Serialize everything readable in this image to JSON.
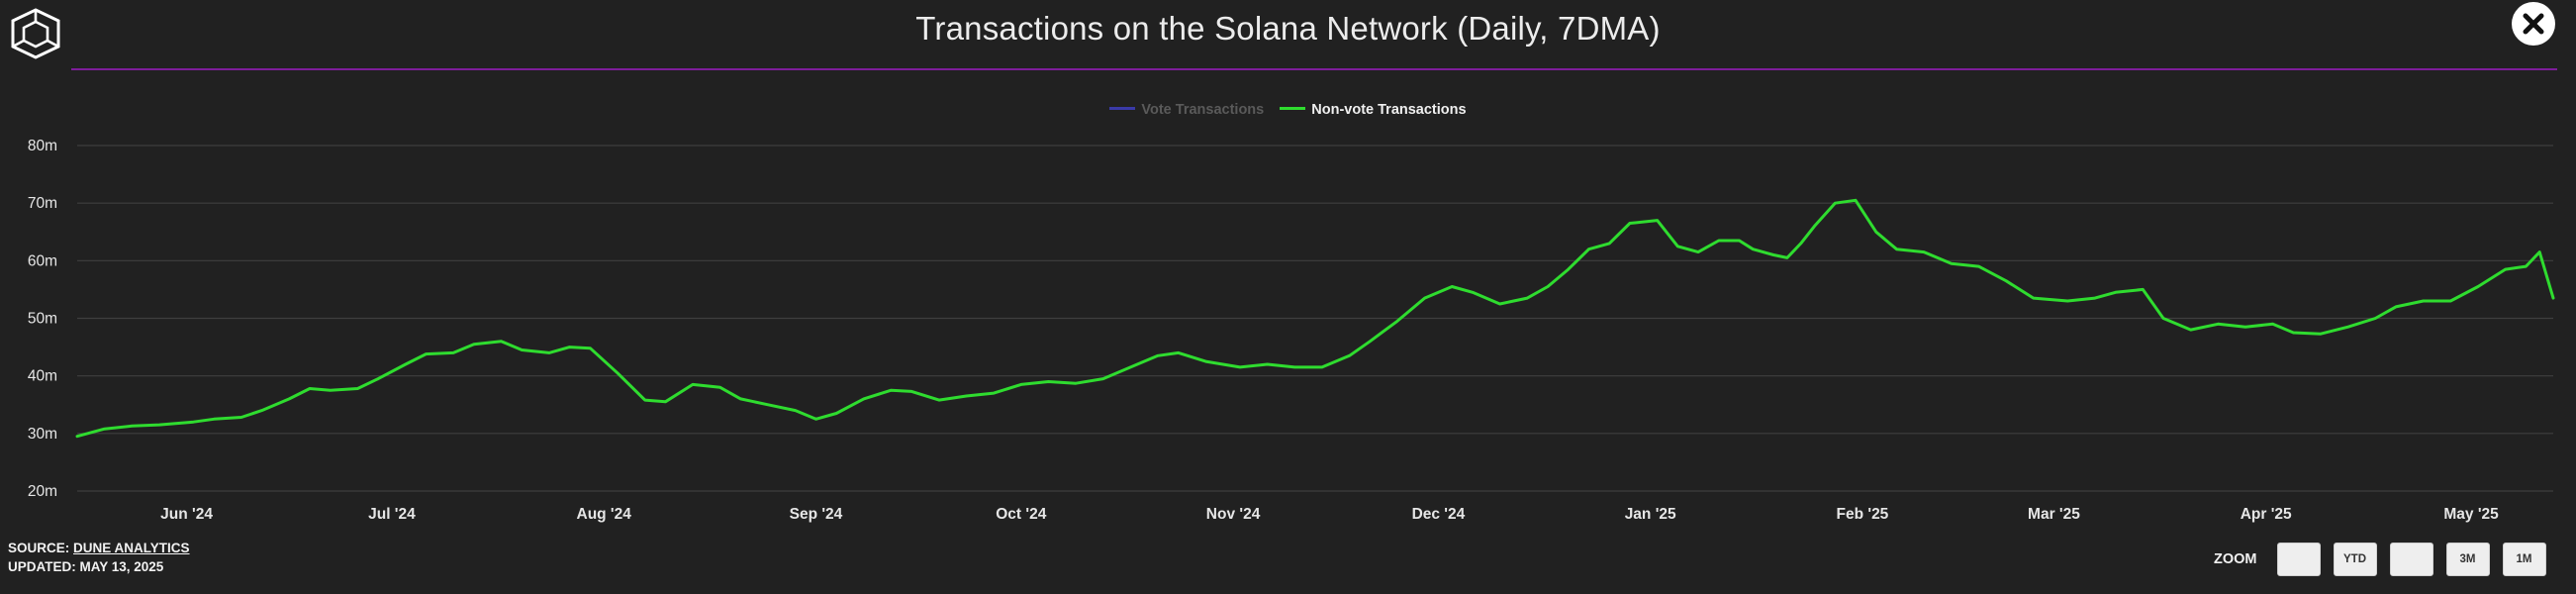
{
  "header": {
    "title": "Transactions on the Solana Network (Daily, 7DMA)"
  },
  "colors": {
    "background": "#212121",
    "divider": "#7d1d9a",
    "series_active": "#2fdc2f",
    "series_inactive": "#3a3aa8",
    "grid": "#3f3f3f"
  },
  "icons": {
    "logo": "cube-logo-icon",
    "close": "close-icon"
  },
  "legend": {
    "items": [
      {
        "label": "Vote Transactions",
        "state": "hidden"
      },
      {
        "label": "Non-vote Transactions",
        "state": "visible"
      }
    ]
  },
  "footer": {
    "source_prefix": "SOURCE: ",
    "source_link": "DUNE ANALYTICS",
    "updated": "UPDATED: MAY 13, 2025"
  },
  "zoom": {
    "label": "ZOOM",
    "buttons": [
      "",
      "YTD",
      "",
      "3M",
      "1M"
    ]
  },
  "chart_data": {
    "type": "line",
    "title": "Transactions on the Solana Network (Daily, 7DMA)",
    "xlabel": "",
    "ylabel": "",
    "grid": true,
    "legend_position": "top-center",
    "y_unit": "m",
    "ylim": [
      20,
      80
    ],
    "y_ticks": [
      20,
      30,
      40,
      50,
      60,
      70,
      80
    ],
    "y_tick_labels": [
      "20m",
      "30m",
      "40m",
      "50m",
      "60m",
      "70m",
      "80m"
    ],
    "xlim": [
      "2024-05-16",
      "2025-05-13"
    ],
    "x_ticks": [
      "2024-06-01",
      "2024-07-01",
      "2024-08-01",
      "2024-09-01",
      "2024-10-01",
      "2024-11-01",
      "2024-12-01",
      "2025-01-01",
      "2025-02-01",
      "2025-03-01",
      "2025-04-01",
      "2025-05-01"
    ],
    "x_tick_labels": [
      "Jun '24",
      "Jul '24",
      "Aug '24",
      "Sep '24",
      "Oct '24",
      "Nov '24",
      "Dec '24",
      "Jan '25",
      "Feb '25",
      "Mar '25",
      "Apr '25",
      "May '25"
    ],
    "series": [
      {
        "name": "Vote Transactions",
        "visible": false,
        "values": []
      },
      {
        "name": "Non-vote Transactions",
        "visible": true,
        "x": [
          "2024-05-16",
          "2024-05-20",
          "2024-05-24",
          "2024-05-28",
          "2024-06-02",
          "2024-06-05",
          "2024-06-09",
          "2024-06-12",
          "2024-06-16",
          "2024-06-19",
          "2024-06-22",
          "2024-06-26",
          "2024-06-29",
          "2024-07-03",
          "2024-07-06",
          "2024-07-10",
          "2024-07-13",
          "2024-07-17",
          "2024-07-20",
          "2024-07-24",
          "2024-07-27",
          "2024-07-30",
          "2024-08-03",
          "2024-08-07",
          "2024-08-10",
          "2024-08-14",
          "2024-08-18",
          "2024-08-21",
          "2024-08-25",
          "2024-08-29",
          "2024-09-01",
          "2024-09-04",
          "2024-09-08",
          "2024-09-12",
          "2024-09-15",
          "2024-09-19",
          "2024-09-23",
          "2024-09-27",
          "2024-10-01",
          "2024-10-05",
          "2024-10-09",
          "2024-10-13",
          "2024-10-17",
          "2024-10-21",
          "2024-10-24",
          "2024-10-28",
          "2024-11-02",
          "2024-11-06",
          "2024-11-10",
          "2024-11-14",
          "2024-11-18",
          "2024-11-21",
          "2024-11-25",
          "2024-11-29",
          "2024-12-03",
          "2024-12-06",
          "2024-12-10",
          "2024-12-14",
          "2024-12-17",
          "2024-12-20",
          "2024-12-23",
          "2024-12-26",
          "2024-12-29",
          "2025-01-02",
          "2025-01-05",
          "2025-01-08",
          "2025-01-11",
          "2025-01-14",
          "2025-01-16",
          "2025-01-19",
          "2025-01-21",
          "2025-01-23",
          "2025-01-25",
          "2025-01-28",
          "2025-01-31",
          "2025-02-03",
          "2025-02-06",
          "2025-02-10",
          "2025-02-14",
          "2025-02-18",
          "2025-02-22",
          "2025-02-26",
          "2025-03-03",
          "2025-03-07",
          "2025-03-10",
          "2025-03-14",
          "2025-03-17",
          "2025-03-21",
          "2025-03-25",
          "2025-03-29",
          "2025-04-02",
          "2025-04-05",
          "2025-04-09",
          "2025-04-13",
          "2025-04-17",
          "2025-04-20",
          "2025-04-24",
          "2025-04-28",
          "2025-05-02",
          "2025-05-06",
          "2025-05-09",
          "2025-05-11",
          "2025-05-13"
        ],
        "values": [
          29.5,
          30.8,
          31.3,
          31.5,
          32.0,
          32.5,
          32.8,
          34.0,
          36.0,
          37.8,
          37.5,
          37.8,
          39.5,
          42.0,
          43.8,
          44.0,
          45.5,
          46.0,
          44.5,
          44.0,
          45.0,
          44.8,
          40.5,
          35.8,
          35.5,
          38.5,
          38.0,
          36.0,
          35.0,
          34.0,
          32.5,
          33.5,
          36.0,
          37.5,
          37.3,
          35.8,
          36.5,
          37.0,
          38.5,
          39.0,
          38.7,
          39.5,
          41.5,
          43.5,
          44.0,
          42.5,
          41.5,
          42.0,
          41.5,
          41.5,
          43.5,
          46.0,
          49.5,
          53.5,
          55.5,
          54.5,
          52.5,
          53.5,
          55.5,
          58.5,
          62.0,
          63.0,
          66.5,
          67.0,
          62.5,
          61.5,
          63.5,
          63.5,
          62.0,
          61.0,
          60.5,
          63.0,
          66.0,
          70.0,
          70.5,
          65.0,
          62.0,
          61.5,
          59.5,
          59.0,
          56.5,
          53.5,
          53.0,
          53.5,
          54.5,
          55.0,
          50.0,
          48.0,
          49.0,
          48.5,
          49.0,
          47.5,
          47.3,
          48.5,
          50.0,
          52.0,
          53.0,
          53.0,
          55.5,
          58.5,
          59.0,
          61.5,
          53.5
        ]
      }
    ]
  }
}
